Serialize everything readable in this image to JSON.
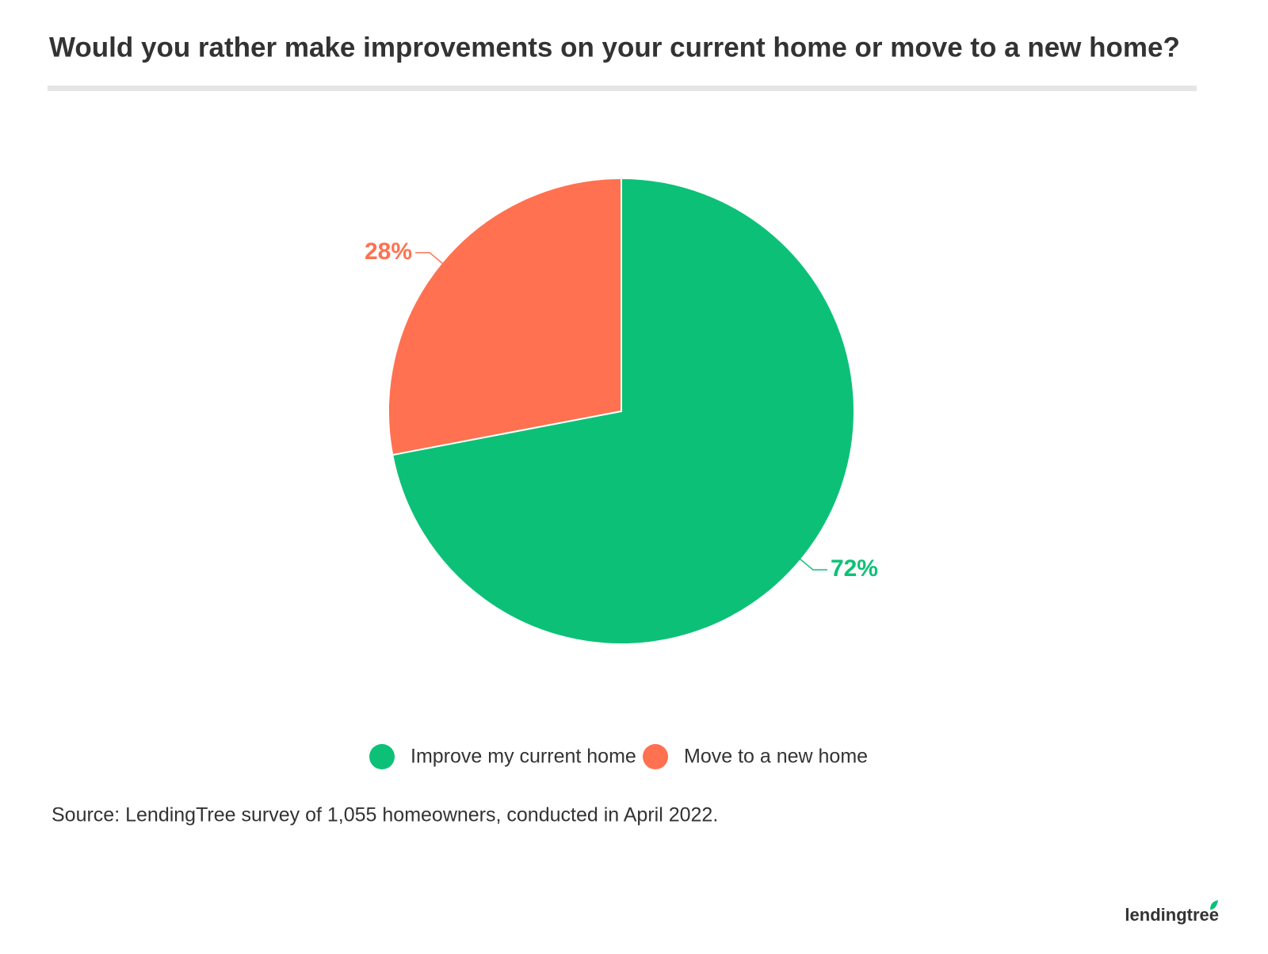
{
  "chart_data": {
    "type": "pie",
    "title": "Would you rather make improvements on your current home or move to a new home?",
    "categories": [
      "Improve my current home",
      "Move to a new home"
    ],
    "values": [
      72,
      28
    ],
    "value_labels": [
      "72%",
      "28%"
    ],
    "colors": [
      "#0cc177",
      "#ff7150"
    ],
    "source": "Source: LendingTree survey of 1,055 homeowners, conducted in April 2022.",
    "logo": "lendingtree"
  }
}
